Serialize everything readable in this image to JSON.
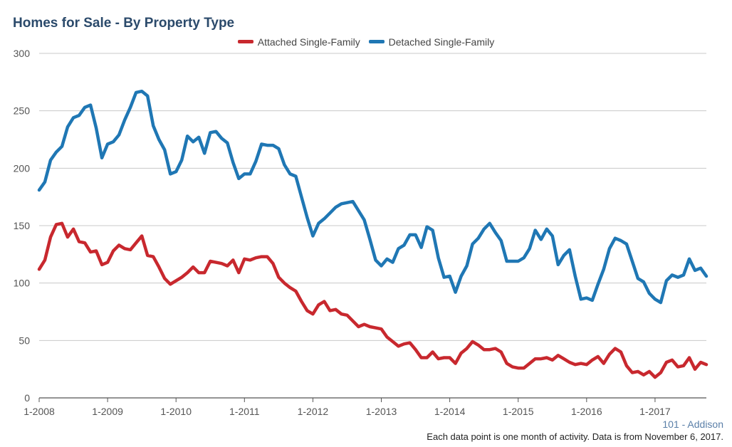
{
  "chart_data": {
    "type": "line",
    "title": "Homes for Sale - By Property Type",
    "xlabel": "",
    "ylabel": "",
    "ylim": [
      0,
      300
    ],
    "yticks": [
      0,
      50,
      100,
      150,
      200,
      250,
      300
    ],
    "xticks": [
      "1-2008",
      "1-2009",
      "1-2010",
      "1-2011",
      "1-2012",
      "1-2013",
      "1-2014",
      "1-2015",
      "1-2016",
      "1-2017"
    ],
    "x_start": "1-2008",
    "x_end": "10-2017",
    "grid": true,
    "legend_position": "top-center",
    "series": [
      {
        "name": "Attached Single-Family",
        "color": "#c8282e",
        "values": [
          112,
          120,
          140,
          151,
          152,
          140,
          147,
          136,
          135,
          127,
          128,
          116,
          118,
          128,
          133,
          130,
          129,
          135,
          141,
          124,
          123,
          114,
          104,
          99,
          102,
          105,
          109,
          114,
          109,
          109,
          119,
          118,
          117,
          115,
          120,
          109,
          121,
          120,
          122,
          123,
          123,
          117,
          105,
          100,
          96,
          93,
          84,
          76,
          73,
          81,
          84,
          76,
          77,
          73,
          72,
          67,
          62,
          64,
          62,
          61,
          60,
          53,
          49,
          45,
          47,
          48,
          42,
          35,
          35,
          40,
          34,
          35,
          35,
          30,
          39,
          43,
          49,
          46,
          42,
          42,
          43,
          40,
          30,
          27,
          26,
          26,
          30,
          34,
          34,
          35,
          33,
          37,
          34,
          31,
          29,
          30,
          29,
          33,
          36,
          30,
          38,
          43,
          40,
          28,
          22,
          23,
          20,
          23,
          18,
          22,
          31,
          33,
          27,
          28,
          35,
          25,
          31,
          29
        ],
        "x_range": [
          "1-2008",
          "10-2017"
        ]
      },
      {
        "name": "Detached Single-Family",
        "color": "#1f77b4",
        "values": [
          181,
          188,
          207,
          214,
          219,
          236,
          244,
          246,
          253,
          255,
          235,
          209,
          221,
          223,
          229,
          242,
          253,
          266,
          267,
          263,
          237,
          225,
          216,
          195,
          197,
          207,
          228,
          223,
          227,
          213,
          231,
          232,
          226,
          222,
          205,
          191,
          195,
          195,
          206,
          221,
          220,
          220,
          217,
          203,
          195,
          193,
          175,
          157,
          141,
          152,
          156,
          161,
          166,
          169,
          170,
          171,
          163,
          155,
          138,
          120,
          115,
          121,
          118,
          130,
          133,
          142,
          142,
          131,
          149,
          146,
          122,
          105,
          106,
          92,
          106,
          115,
          134,
          139,
          147,
          152,
          144,
          137,
          119,
          119,
          119,
          122,
          130,
          146,
          138,
          147,
          141,
          116,
          124,
          129,
          106,
          86,
          87,
          85,
          99,
          112,
          130,
          139,
          137,
          134,
          119,
          104,
          101,
          91,
          86,
          83,
          102,
          107,
          105,
          107,
          121,
          111,
          113,
          106
        ],
        "x_range": [
          "1-2008",
          "10-2017"
        ]
      }
    ]
  },
  "legend": {
    "attached_label": "Attached Single-Family",
    "detached_label": "Detached Single-Family"
  },
  "source_label": "101 - Addison",
  "footnote": "Each data point is one month of activity. Data is from November 6, 2017."
}
